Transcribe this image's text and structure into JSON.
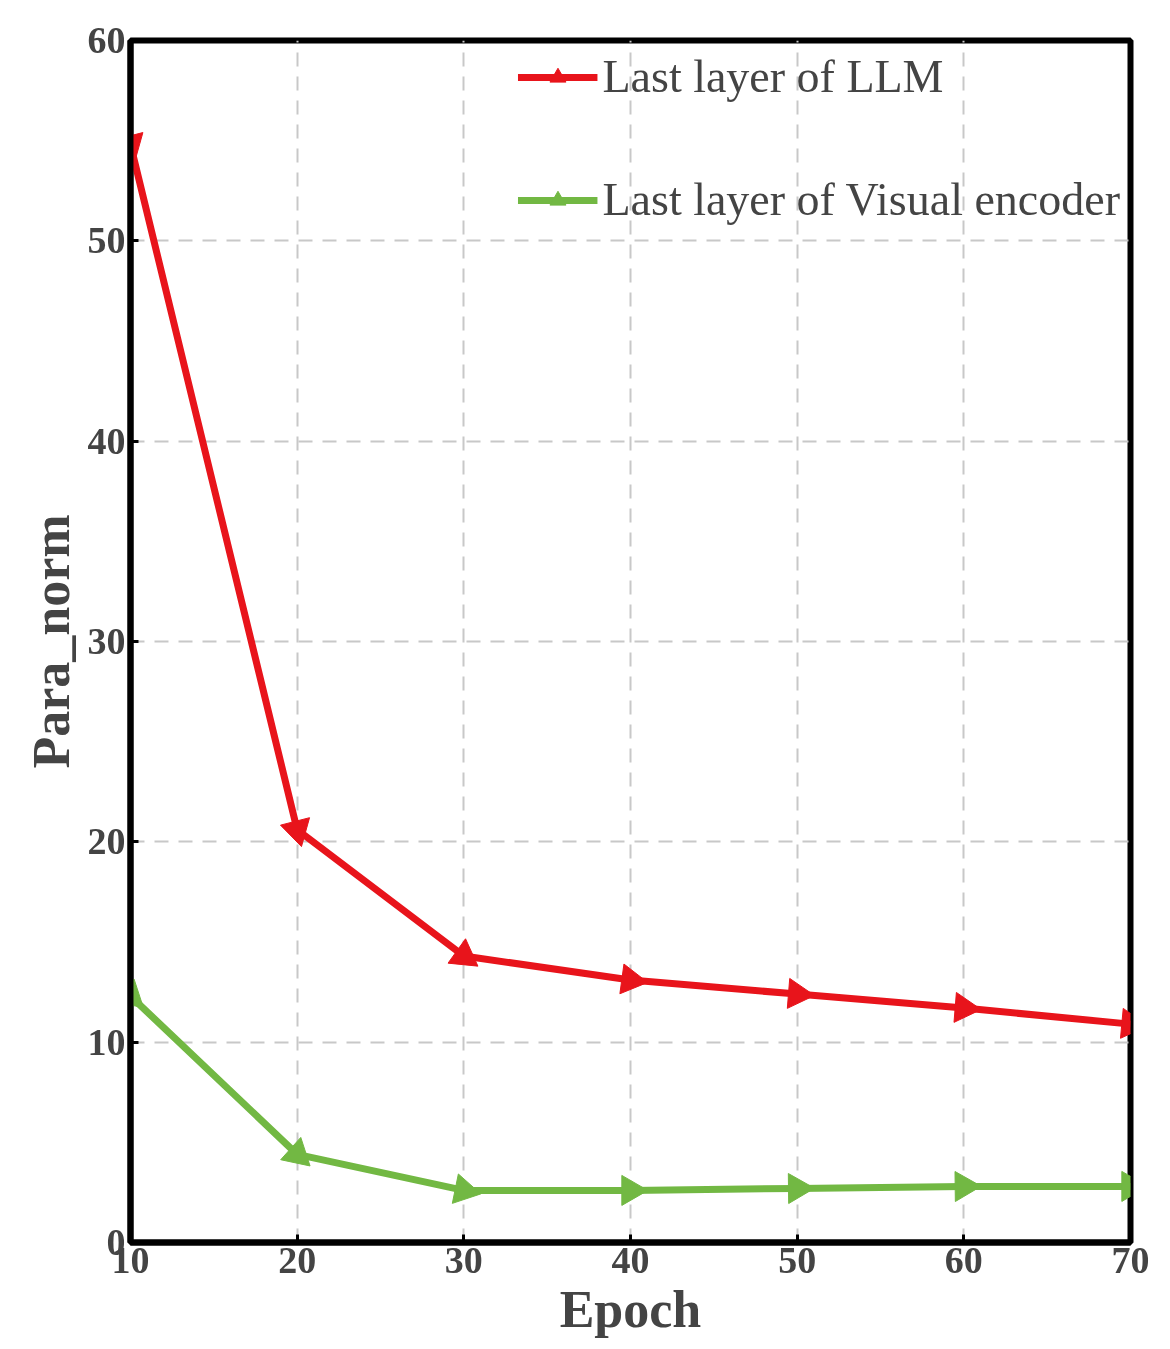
{
  "chart_data": {
    "type": "line",
    "xlabel": "Epoch",
    "ylabel": "Para_norm",
    "x": [
      10,
      20,
      30,
      40,
      50,
      60,
      70
    ],
    "xlim": [
      10,
      70
    ],
    "ylim": [
      0,
      60
    ],
    "xticks": [
      10,
      20,
      30,
      40,
      50,
      60,
      70
    ],
    "yticks": [
      0,
      10,
      20,
      30,
      40,
      50,
      60
    ],
    "grid": true,
    "legend": "top right",
    "marker": "triangle",
    "line_style": "solid",
    "series": [
      {
        "name": "Last layer of LLM",
        "color": "#e8141b",
        "values": [
          54.8,
          20.6,
          14.3,
          13.1,
          12.4,
          11.7,
          10.9
        ]
      },
      {
        "name": "Last layer of Visual encoder",
        "color": "#72b843",
        "values": [
          12.3,
          4.4,
          2.6,
          2.6,
          2.7,
          2.8,
          2.8
        ]
      }
    ]
  }
}
